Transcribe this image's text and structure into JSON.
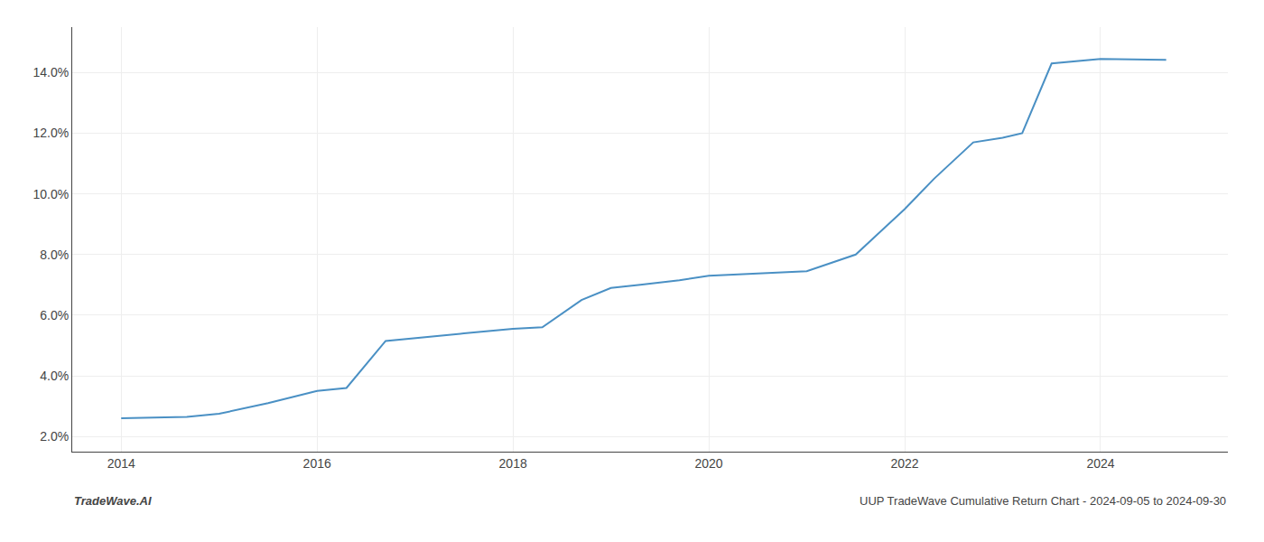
{
  "chart_data": {
    "type": "line",
    "x": [
      2014.0,
      2014.67,
      2015.0,
      2015.5,
      2016.0,
      2016.3,
      2016.7,
      2017.0,
      2017.5,
      2018.0,
      2018.3,
      2018.7,
      2019.0,
      2019.3,
      2019.7,
      2020.0,
      2020.3,
      2020.7,
      2021.0,
      2021.5,
      2022.0,
      2022.3,
      2022.7,
      2023.0,
      2023.2,
      2023.5,
      2024.0,
      2024.67
    ],
    "values": [
      2.6,
      2.65,
      2.75,
      3.1,
      3.5,
      3.6,
      5.15,
      5.25,
      5.4,
      5.55,
      5.6,
      6.5,
      6.9,
      7.0,
      7.15,
      7.3,
      7.35,
      7.4,
      7.45,
      8.0,
      9.5,
      10.5,
      11.7,
      11.85,
      12.0,
      14.3,
      14.45,
      14.42
    ],
    "color": "#4a90c4",
    "xlim": [
      2013.5,
      2025.3
    ],
    "ylim": [
      1.5,
      15.5
    ],
    "xticks": [
      2014,
      2016,
      2018,
      2020,
      2022,
      2024
    ],
    "yticks": [
      {
        "value": 2.0,
        "label": "2.0%"
      },
      {
        "value": 4.0,
        "label": "4.0%"
      },
      {
        "value": 6.0,
        "label": "6.0%"
      },
      {
        "value": 8.0,
        "label": "8.0%"
      },
      {
        "value": 10.0,
        "label": "10.0%"
      },
      {
        "value": 12.0,
        "label": "12.0%"
      },
      {
        "value": 14.0,
        "label": "14.0%"
      }
    ],
    "grid": true,
    "annotations": [
      "TradeWave.AI",
      "UUP TradeWave Cumulative Return Chart - 2024-09-05 to 2024-09-30"
    ]
  }
}
